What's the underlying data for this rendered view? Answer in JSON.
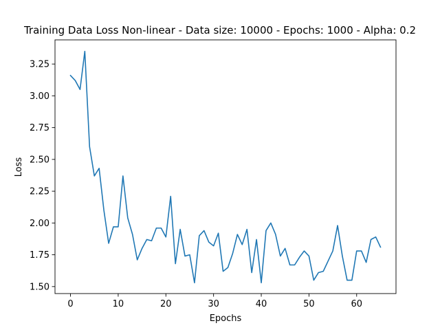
{
  "chart_data": {
    "type": "line",
    "title": "Training Data Loss Non-linear - Data size: 10000 - Epochs: 1000 - Alpha: 0.2",
    "xlabel": "Epochs",
    "ylabel": "Loss",
    "xlim": [
      -3.25,
      68.25
    ],
    "ylim": [
      1.445,
      3.44
    ],
    "grid": false,
    "legend": "none",
    "xticks": [
      0,
      10,
      20,
      30,
      40,
      50,
      60
    ],
    "xtick_labels": [
      "0",
      "10",
      "20",
      "30",
      "40",
      "50",
      "60"
    ],
    "yticks": [
      1.5,
      1.75,
      2.0,
      2.25,
      2.5,
      2.75,
      3.0,
      3.25
    ],
    "ytick_labels": [
      "1.50",
      "1.75",
      "2.00",
      "2.25",
      "2.50",
      "2.75",
      "3.00",
      "3.25"
    ],
    "series": [
      {
        "name": "loss",
        "color": "#1f77b4",
        "x": [
          0,
          1,
          2,
          3,
          4,
          5,
          6,
          7,
          8,
          9,
          10,
          11,
          12,
          13,
          14,
          15,
          16,
          17,
          18,
          19,
          20,
          21,
          22,
          23,
          24,
          25,
          26,
          27,
          28,
          29,
          30,
          31,
          32,
          33,
          34,
          35,
          36,
          37,
          38,
          39,
          40,
          41,
          42,
          43,
          44,
          45,
          46,
          47,
          48,
          49,
          50,
          51,
          52,
          53,
          54,
          55,
          56,
          57,
          58,
          59,
          60,
          61,
          62,
          63,
          64,
          65
        ],
        "values": [
          3.16,
          3.12,
          3.05,
          3.35,
          2.6,
          2.37,
          2.43,
          2.1,
          1.84,
          1.97,
          1.97,
          2.37,
          2.04,
          1.91,
          1.71,
          1.8,
          1.87,
          1.86,
          1.96,
          1.96,
          1.89,
          2.21,
          1.68,
          1.95,
          1.74,
          1.75,
          1.53,
          1.9,
          1.94,
          1.85,
          1.82,
          1.92,
          1.62,
          1.65,
          1.76,
          1.91,
          1.83,
          1.95,
          1.61,
          1.87,
          1.53,
          1.94,
          2.0,
          1.91,
          1.74,
          1.8,
          1.67,
          1.67,
          1.73,
          1.78,
          1.74,
          1.55,
          1.61,
          1.62,
          1.7,
          1.78,
          1.98,
          1.74,
          1.55,
          1.55,
          1.78,
          1.78,
          1.69,
          1.87,
          1.89,
          1.81
        ]
      }
    ]
  }
}
